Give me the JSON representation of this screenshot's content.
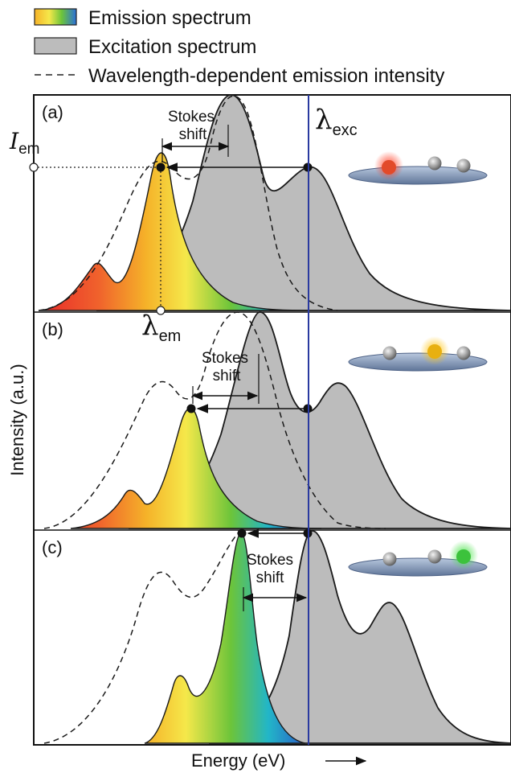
{
  "legend": {
    "emission": "Emission spectrum",
    "excitation": "Excitation spectrum",
    "dependent": "Wavelength-dependent emission intensity"
  },
  "axes": {
    "ylabel": "Intensity (a.u.)",
    "xlabel": "Energy (eV)"
  },
  "symbols": {
    "lambda": "λ",
    "exc_sub": "exc",
    "em_sub": "em",
    "I": "I"
  },
  "panels": [
    {
      "label": "(a)",
      "stokes_line1": "Stokes",
      "stokes_line2": "shift",
      "dot_color": "#e24a2a"
    },
    {
      "label": "(b)",
      "stokes_line1": "Stokes",
      "stokes_line2": "shift",
      "dot_color": "#e8b010"
    },
    {
      "label": "(c)",
      "stokes_line1": "Stokes",
      "stokes_line2": "shift",
      "dot_color": "#3cc23c"
    }
  ],
  "colors": {
    "excitation_fill": "#bcbcbc",
    "excitation_line": "#1a1a1a",
    "exc_line": "#2a3aa0",
    "platform": "#8ea4c4"
  }
}
